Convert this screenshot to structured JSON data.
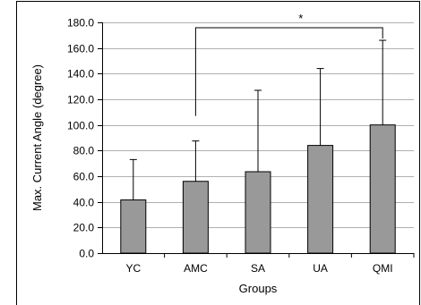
{
  "chart_data": {
    "type": "bar",
    "categories": [
      "YC",
      "AMC",
      "SA",
      "UA",
      "QMI"
    ],
    "values": [
      41.5,
      56.0,
      63.5,
      84.0,
      100.0
    ],
    "error_upper": [
      73.0,
      87.5,
      127.0,
      144.0,
      166.0
    ],
    "xlabel": "Groups",
    "ylabel": "Max. Current Angle (degree)",
    "ylim": [
      0,
      180
    ],
    "yticks": [
      "0.0",
      "20.0",
      "40.0",
      "60.0",
      "80.0",
      "100.0",
      "120.0",
      "140.0",
      "160.0",
      "180.0"
    ],
    "grid": true,
    "legend": "none",
    "annotations": [
      {
        "text": "*",
        "from": "AMC",
        "to": "QMI"
      }
    ],
    "colors": {
      "bar": "#999999",
      "bar_stroke": "#000000",
      "grid": "#b0b0b0"
    }
  }
}
